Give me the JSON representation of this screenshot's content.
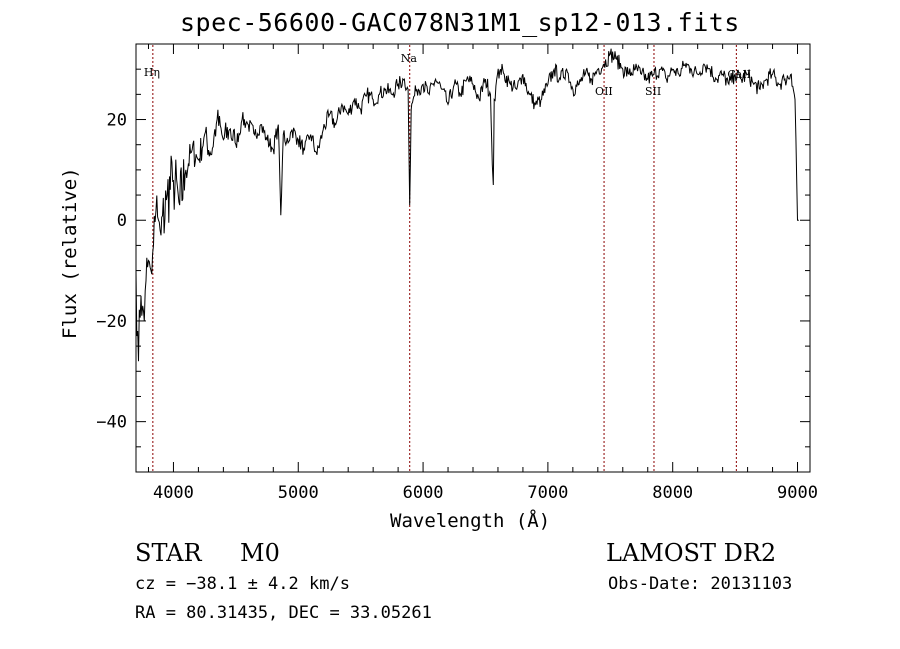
{
  "header": {
    "title": "spec-56600-GAC078N31M1_sp12-013.fits"
  },
  "footer": {
    "object_class": "STAR",
    "subclass": "M0",
    "survey": "LAMOST DR2",
    "cz": "cz = −38.1 ± 4.2 km/s",
    "obs_date": "Obs-Date: 20131103",
    "radec": "RA =  80.31435, DEC =  33.05261"
  },
  "chart_data": {
    "type": "line",
    "title": "spec-56600-GAC078N31M1_sp12-013.fits",
    "xlabel": "Wavelength (Å)",
    "ylabel": "Flux (relative)",
    "xlim": [
      3700,
      9100
    ],
    "ylim": [
      -50,
      35
    ],
    "xticks": [
      4000,
      5000,
      6000,
      7000,
      8000,
      9000
    ],
    "yticks": [
      -40,
      -20,
      0,
      20
    ],
    "grid": false,
    "line_color": "#000000",
    "marker_color": "#8b0000",
    "lines": [
      {
        "label": "Hη",
        "x": 3835
      },
      {
        "label": "Na",
        "x": 5893
      },
      {
        "label": "OII",
        "x": 7450
      },
      {
        "label": "SII",
        "x": 7850
      },
      {
        "label": "CaII",
        "x": 8510
      }
    ],
    "series": [
      {
        "x": [
          3700,
          3720,
          3740,
          3760,
          3780,
          3800,
          3820,
          3840,
          3860,
          3880,
          3900,
          3950,
          4000,
          4050,
          4100,
          4150,
          4200,
          4250,
          4300,
          4350,
          4400,
          4450,
          4500,
          4550,
          4600,
          4650,
          4700,
          4750,
          4800,
          4840,
          4860,
          4880,
          4900,
          4950,
          5000,
          5050,
          5100,
          5150,
          5200,
          5250,
          5300,
          5350,
          5400,
          5450,
          5500,
          5550,
          5600,
          5650,
          5700,
          5750,
          5800,
          5850,
          5880,
          5893,
          5905,
          5920,
          5950,
          6000,
          6050,
          6100,
          6150,
          6200,
          6250,
          6300,
          6350,
          6400,
          6450,
          6500,
          6540,
          6555,
          6563,
          6570,
          6590,
          6620,
          6650,
          6700,
          6750,
          6800,
          6850,
          6900,
          6950,
          7000,
          7050,
          7100,
          7150,
          7200,
          7250,
          7300,
          7350,
          7400,
          7450,
          7500,
          7550,
          7600,
          7650,
          7700,
          7750,
          7800,
          7850,
          7900,
          7950,
          8000,
          8050,
          8100,
          8150,
          8200,
          8250,
          8300,
          8350,
          8400,
          8450,
          8500,
          8550,
          8600,
          8650,
          8700,
          8750,
          8800,
          8850,
          8900,
          8950,
          8980,
          9000,
          9010
        ],
        "values": [
          -10,
          -28,
          -15,
          -18,
          -12,
          -8,
          -10,
          -5,
          2,
          0,
          -3,
          5,
          8,
          3,
          10,
          14,
          12,
          17,
          13,
          20,
          16,
          18,
          15,
          20,
          19,
          17,
          19,
          16,
          14,
          19,
          1,
          17,
          15,
          18,
          16,
          14,
          17,
          13,
          18,
          21,
          19,
          23,
          21,
          24,
          22,
          25,
          24,
          25,
          26,
          25,
          27,
          28,
          26,
          3,
          22,
          24,
          26,
          27,
          25,
          28,
          26,
          23,
          27,
          25,
          28,
          27,
          24,
          28,
          25,
          11,
          7,
          24,
          28,
          30,
          29,
          27,
          26,
          29,
          25,
          23,
          24,
          27,
          30,
          28,
          30,
          26,
          27,
          29,
          28,
          30,
          31,
          33,
          32,
          30,
          29,
          30,
          29,
          28,
          29,
          30,
          28,
          30,
          29,
          31,
          30,
          29,
          31,
          30,
          28,
          29,
          27,
          29,
          28,
          29,
          27,
          26,
          28,
          29,
          27,
          28,
          29,
          24,
          0,
          0
        ]
      }
    ]
  }
}
